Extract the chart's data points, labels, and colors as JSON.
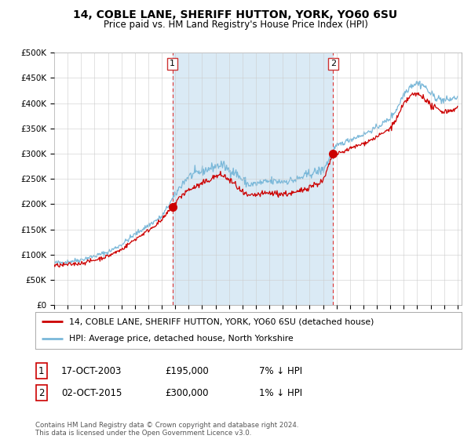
{
  "title": "14, COBLE LANE, SHERIFF HUTTON, YORK, YO60 6SU",
  "subtitle": "Price paid vs. HM Land Registry's House Price Index (HPI)",
  "ylim": [
    0,
    500000
  ],
  "yticks": [
    0,
    50000,
    100000,
    150000,
    200000,
    250000,
    300000,
    350000,
    400000,
    450000,
    500000
  ],
  "ytick_labels": [
    "£0",
    "£50K",
    "£100K",
    "£150K",
    "£200K",
    "£250K",
    "£300K",
    "£350K",
    "£400K",
    "£450K",
    "£500K"
  ],
  "hpi_color": "#7ab8d9",
  "price_color": "#cc0000",
  "shade_color": "#daeaf5",
  "sale1_date": 2003.79,
  "sale1_price": 195000,
  "sale1_label": "1",
  "sale1_text": "17-OCT-2003",
  "sale1_amount": "£195,000",
  "sale1_hpi": "7% ↓ HPI",
  "sale2_date": 2015.75,
  "sale2_price": 300000,
  "sale2_label": "2",
  "sale2_text": "02-OCT-2015",
  "sale2_amount": "£300,000",
  "sale2_hpi": "1% ↓ HPI",
  "legend_line1": "14, COBLE LANE, SHERIFF HUTTON, YORK, YO60 6SU (detached house)",
  "legend_line2": "HPI: Average price, detached house, North Yorkshire",
  "footer": "Contains HM Land Registry data © Crown copyright and database right 2024.\nThis data is licensed under the Open Government Licence v3.0.",
  "background_color": "#ffffff",
  "grid_color": "#cccccc",
  "hpi_keypoints_x": [
    1995,
    1996,
    1997,
    1998,
    1999,
    2000,
    2001,
    2002,
    2003,
    2003.79,
    2004.5,
    2005,
    2006,
    2007,
    2007.5,
    2008,
    2008.5,
    2009,
    2009.5,
    2010,
    2011,
    2012,
    2013,
    2014,
    2015,
    2015.75,
    2016,
    2017,
    2018,
    2019,
    2020,
    2020.5,
    2021,
    2021.5,
    2022,
    2022.5,
    2023,
    2023.5,
    2024,
    2024.5,
    2025
  ],
  "hpi_keypoints_y": [
    83000,
    86000,
    90000,
    97000,
    105000,
    120000,
    140000,
    158000,
    175000,
    210000,
    240000,
    255000,
    265000,
    275000,
    278000,
    268000,
    262000,
    248000,
    238000,
    240000,
    245000,
    245000,
    248000,
    260000,
    268000,
    303000,
    315000,
    328000,
    338000,
    352000,
    370000,
    390000,
    418000,
    435000,
    440000,
    435000,
    418000,
    410000,
    405000,
    408000,
    412000
  ],
  "price_keypoints_x": [
    1995,
    1996,
    1997,
    1998,
    1999,
    2000,
    2001,
    2002,
    2003,
    2003.79,
    2004.5,
    2005,
    2006,
    2007,
    2007.5,
    2008,
    2008.5,
    2009,
    2009.5,
    2010,
    2011,
    2012,
    2013,
    2014,
    2015,
    2015.75,
    2016,
    2017,
    2018,
    2019,
    2020,
    2020.5,
    2021,
    2021.5,
    2022,
    2022.5,
    2023,
    2023.5,
    2024,
    2024.5,
    2025
  ],
  "price_keypoints_y": [
    78000,
    80000,
    83000,
    89000,
    97000,
    110000,
    130000,
    148000,
    168000,
    195000,
    218000,
    228000,
    240000,
    255000,
    258000,
    248000,
    238000,
    222000,
    215000,
    218000,
    222000,
    220000,
    222000,
    235000,
    245000,
    300000,
    298000,
    310000,
    320000,
    333000,
    350000,
    370000,
    398000,
    415000,
    418000,
    412000,
    395000,
    388000,
    383000,
    386000,
    390000
  ]
}
